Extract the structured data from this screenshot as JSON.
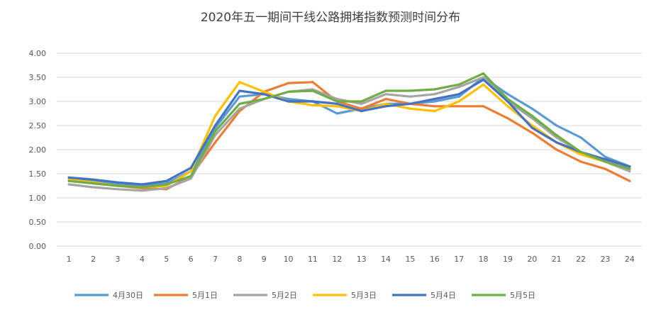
{
  "chart_data": {
    "type": "line",
    "title": "2020年五一期间干线公路拥堵指数预测时间分布",
    "xlabel": "",
    "ylabel": "",
    "ylim": [
      0,
      4
    ],
    "yticks": [
      "0.00",
      "0.50",
      "1.00",
      "1.50",
      "2.00",
      "2.50",
      "3.00",
      "3.50",
      "4.00"
    ],
    "x": [
      "1",
      "2",
      "3",
      "4",
      "5",
      "6",
      "7",
      "8",
      "9",
      "10",
      "11",
      "12",
      "13",
      "14",
      "15",
      "16",
      "17",
      "18",
      "19",
      "20",
      "21",
      "22",
      "23",
      "24"
    ],
    "grid": true,
    "legend_position": "bottom",
    "series": [
      {
        "name": "4月30日",
        "color": "#5B9BD5",
        "values": [
          1.42,
          1.35,
          1.28,
          1.25,
          1.3,
          1.55,
          2.45,
          3.1,
          3.15,
          3.05,
          3.0,
          2.75,
          2.85,
          2.95,
          2.95,
          3.0,
          3.1,
          3.5,
          3.15,
          2.85,
          2.5,
          2.25,
          1.85,
          1.65
        ]
      },
      {
        "name": "5月1日",
        "color": "#ED7D31",
        "values": [
          1.35,
          1.3,
          1.25,
          1.2,
          1.18,
          1.45,
          2.15,
          2.8,
          3.2,
          3.38,
          3.4,
          3.0,
          2.85,
          3.05,
          2.95,
          2.9,
          2.9,
          2.9,
          2.65,
          2.35,
          2.0,
          1.75,
          1.6,
          1.35
        ]
      },
      {
        "name": "5月2日",
        "color": "#A5A5A5",
        "values": [
          1.28,
          1.22,
          1.18,
          1.15,
          1.2,
          1.4,
          2.3,
          2.85,
          3.05,
          3.2,
          3.25,
          3.05,
          2.95,
          3.15,
          3.1,
          3.15,
          3.3,
          3.5,
          3.0,
          2.65,
          2.25,
          1.95,
          1.75,
          1.55
        ]
      },
      {
        "name": "5月3日",
        "color": "#FFC000",
        "values": [
          1.38,
          1.32,
          1.25,
          1.22,
          1.25,
          1.55,
          2.7,
          3.4,
          3.2,
          3.0,
          2.92,
          2.9,
          2.8,
          2.95,
          2.85,
          2.8,
          3.0,
          3.35,
          2.9,
          2.5,
          2.15,
          1.9,
          1.75,
          1.6
        ]
      },
      {
        "name": "5月4日",
        "color": "#4472C4",
        "values": [
          1.42,
          1.38,
          1.32,
          1.28,
          1.35,
          1.62,
          2.5,
          3.22,
          3.15,
          3.0,
          3.0,
          2.95,
          2.8,
          2.9,
          2.95,
          3.05,
          3.15,
          3.45,
          3.0,
          2.45,
          2.15,
          1.95,
          1.8,
          1.65
        ]
      },
      {
        "name": "5月5日",
        "color": "#70AD47",
        "values": [
          1.35,
          1.3,
          1.25,
          1.22,
          1.28,
          1.45,
          2.38,
          2.95,
          3.05,
          3.2,
          3.22,
          3.0,
          3.0,
          3.22,
          3.22,
          3.25,
          3.35,
          3.58,
          3.05,
          2.7,
          2.3,
          1.95,
          1.75,
          1.6
        ]
      }
    ]
  }
}
